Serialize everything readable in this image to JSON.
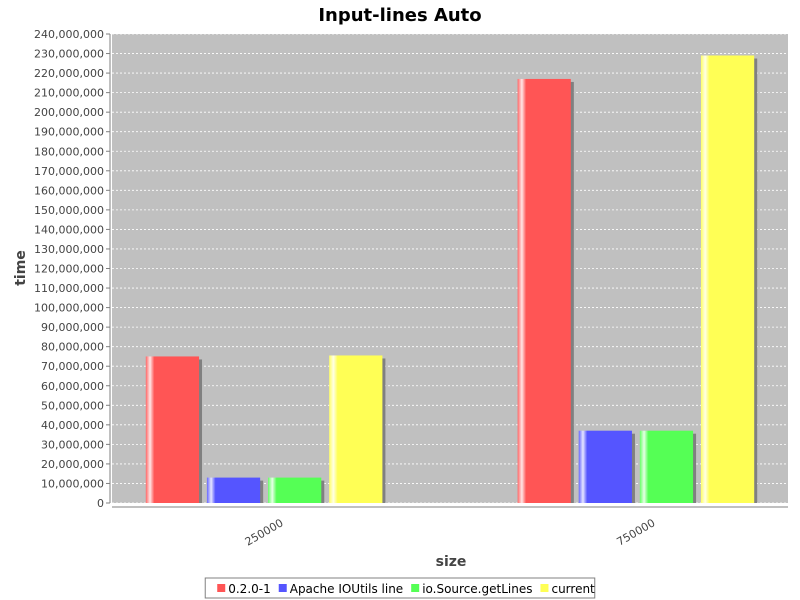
{
  "chart_data": {
    "type": "bar",
    "title": "Input-lines Auto",
    "xlabel": "size",
    "ylabel": "time",
    "categories": [
      "250000",
      "750000"
    ],
    "series": [
      {
        "name": "0.2.0-1",
        "color": "#ff5555",
        "values": [
          75000000,
          217000000
        ]
      },
      {
        "name": "Apache IOUtils line",
        "color": "#5555ff",
        "values": [
          13000000,
          37000000
        ]
      },
      {
        "name": "io.Source.getLines",
        "color": "#55ff55",
        "values": [
          13000000,
          37000000
        ]
      },
      {
        "name": "current",
        "color": "#ffff55",
        "values": [
          75500000,
          229000000
        ]
      }
    ],
    "ylim": [
      0,
      240000000
    ],
    "ytick_step": 10000000,
    "grid": true,
    "legend_position": "bottom",
    "plot_background": "#c0c0c0"
  }
}
